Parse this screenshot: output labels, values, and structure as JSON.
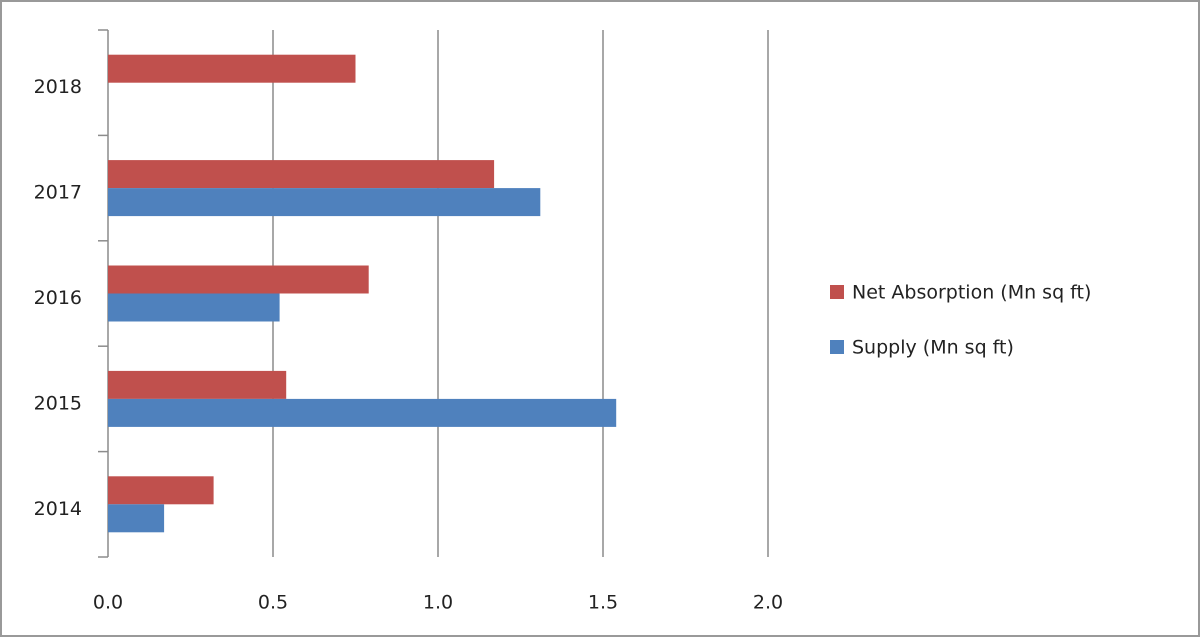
{
  "chart_data": {
    "type": "hbar",
    "categories": [
      "2014",
      "2015",
      "2016",
      "2017",
      "2018"
    ],
    "series": [
      {
        "name": "Net Absorption (Mn sq ft)",
        "color": "#c0504d",
        "values": [
          0.32,
          0.54,
          0.79,
          1.17,
          0.75
        ]
      },
      {
        "name": "Supply (Mn sq ft)",
        "color": "#4f81bd",
        "values": [
          0.17,
          1.54,
          0.52,
          1.31,
          null
        ]
      }
    ],
    "xlim": [
      0,
      2
    ],
    "xticks": [
      {
        "value": 0,
        "label": "0.0"
      },
      0.5,
      {
        "value": 1,
        "label": "1.0"
      },
      1.5,
      {
        "value": 2,
        "label": "2.0"
      }
    ],
    "grid": true,
    "legend": "right"
  }
}
